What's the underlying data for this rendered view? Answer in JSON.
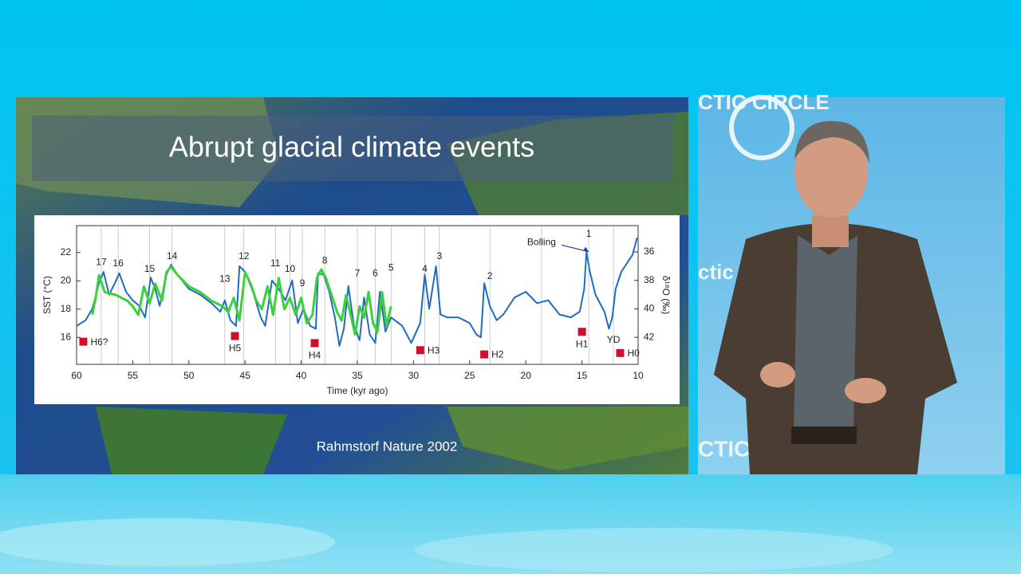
{
  "slide": {
    "title": "Abrupt glacial climate events",
    "caption": "Rahmstorf Nature 2002"
  },
  "backdrop_text": [
    "CTIC CIRCLE",
    "ctic",
    "CTIC"
  ],
  "chart_data": {
    "type": "line",
    "x_label": "Time (kyr ago)",
    "y_label": "SST (°C)",
    "y2_label": "δ¹⁸O (‰)",
    "xlim": [
      60,
      10
    ],
    "xticks": [
      60,
      55,
      50,
      45,
      40,
      35,
      30,
      25,
      20,
      15,
      10
    ],
    "ylim": [
      14.1,
      23.9
    ],
    "yticks": [
      16,
      18,
      20,
      22
    ],
    "y2lim": [
      43.9,
      34.15
    ],
    "y2ticks": [
      36,
      38,
      40,
      42
    ],
    "series": [
      {
        "name": "SST",
        "color": "#3dd03d",
        "axis": "y",
        "x": [
          58.6,
          58.3,
          58.0,
          57.5,
          56.5,
          55.5,
          55.0,
          54.5,
          54.0,
          53.5,
          53.0,
          52.4,
          52.0,
          51.6,
          51.0,
          50.0,
          49.0,
          48.0,
          47.0,
          46.5,
          46.0,
          45.5,
          45.0,
          44.5,
          44.0,
          43.5,
          43.0,
          42.5,
          42.0,
          41.5,
          41.0,
          40.5,
          40.0,
          39.5,
          39.0,
          38.6,
          38.2,
          37.8,
          37.3,
          36.8,
          36.4,
          36.0,
          35.6,
          35.2,
          34.8,
          34.4,
          34.0,
          33.6,
          33.2,
          32.8,
          32.4,
          32.0
        ],
        "values": [
          17.6,
          18.8,
          20.4,
          19.2,
          19.0,
          18.6,
          18.2,
          17.6,
          19.6,
          18.4,
          19.8,
          18.6,
          20.6,
          21.0,
          20.4,
          19.6,
          19.2,
          18.6,
          18.2,
          17.8,
          18.8,
          17.2,
          20.6,
          19.8,
          18.6,
          18.0,
          19.6,
          17.6,
          20.2,
          18.0,
          18.8,
          17.6,
          18.8,
          17.0,
          17.6,
          20.2,
          20.8,
          20.2,
          19.0,
          17.8,
          17.2,
          19.0,
          17.6,
          16.2,
          18.2,
          17.4,
          19.2,
          17.0,
          16.4,
          19.2,
          16.8,
          18.2
        ]
      },
      {
        "name": "δ18O",
        "color": "#1f6cc0",
        "axis": "y2",
        "x": [
          60,
          59.2,
          58.6,
          58.0,
          57.6,
          57.1,
          56.6,
          56.2,
          55.6,
          55.0,
          54.4,
          53.9,
          53.4,
          53.0,
          52.6,
          52.0,
          51.6,
          51.0,
          50.0,
          49.0,
          48.0,
          47.2,
          46.8,
          46.3,
          45.8,
          45.5,
          45.0,
          44.3,
          43.6,
          43.2,
          42.6,
          42.0,
          41.4,
          40.8,
          40.3,
          39.8,
          39.2,
          38.7,
          38.5,
          38.0,
          37.5,
          37.0,
          36.6,
          36.2,
          35.8,
          35.3,
          34.8,
          34.4,
          33.9,
          33.4,
          33.0,
          32.5,
          32.0,
          31.0,
          30.2,
          29.4,
          29.0,
          28.6,
          28.0,
          27.6,
          27.0,
          26.0,
          25.0,
          24.4,
          24.0,
          23.7,
          23.2,
          22.6,
          22.0,
          21.0,
          20.0,
          19.0,
          18.0,
          17.0,
          16.0,
          15.2,
          14.8,
          14.6,
          14.3,
          13.8,
          13.0,
          12.6,
          12.3,
          12.0,
          11.5,
          11.0,
          10.5,
          10.1
        ],
        "values": [
          41.2,
          40.8,
          40.0,
          38.2,
          37.4,
          39.0,
          38.2,
          37.5,
          38.8,
          39.4,
          39.8,
          40.6,
          37.8,
          38.6,
          39.8,
          37.6,
          36.9,
          37.6,
          38.6,
          39.0,
          39.6,
          40.2,
          39.4,
          40.8,
          41.2,
          37.0,
          37.4,
          38.8,
          40.6,
          41.2,
          38.0,
          38.6,
          39.4,
          38.0,
          41.0,
          40.0,
          41.2,
          41.4,
          37.5,
          37.6,
          38.8,
          40.6,
          42.6,
          41.4,
          38.4,
          41.2,
          42.2,
          39.2,
          41.8,
          42.4,
          38.8,
          41.6,
          40.6,
          41.2,
          42.4,
          41.0,
          37.6,
          40.0,
          37.0,
          40.4,
          40.6,
          40.6,
          41.0,
          41.8,
          42.0,
          38.2,
          39.8,
          40.8,
          40.4,
          39.2,
          38.8,
          39.6,
          39.4,
          40.4,
          40.6,
          40.2,
          38.6,
          36.0,
          37.4,
          39.0,
          40.2,
          41.4,
          40.6,
          38.6,
          37.4,
          36.8,
          36.2,
          35.0
        ]
      }
    ],
    "annotations": [
      {
        "text": "17",
        "x": 57.8,
        "y": 21.3
      },
      {
        "text": "16",
        "x": 56.3,
        "y": 21.2
      },
      {
        "text": "15",
        "x": 53.5,
        "y": 20.8
      },
      {
        "text": "14",
        "x": 51.5,
        "y": 21.7
      },
      {
        "text": "13",
        "x": 46.8,
        "y": 20.1
      },
      {
        "text": "12",
        "x": 45.1,
        "y": 21.7
      },
      {
        "text": "11",
        "x": 42.3,
        "y": 21.2
      },
      {
        "text": "10",
        "x": 41.0,
        "y": 20.8
      },
      {
        "text": "9",
        "x": 39.9,
        "y": 19.8
      },
      {
        "text": "8",
        "x": 37.9,
        "y": 21.4
      },
      {
        "text": "7",
        "x": 35.0,
        "y": 20.5
      },
      {
        "text": "6",
        "x": 33.4,
        "y": 20.5
      },
      {
        "text": "5",
        "x": 32.0,
        "y": 20.9
      },
      {
        "text": "4",
        "x": 29.0,
        "y": 20.8
      },
      {
        "text": "3",
        "x": 27.7,
        "y": 21.7
      },
      {
        "text": "2",
        "x": 23.2,
        "y": 20.3
      },
      {
        "text": "1",
        "x": 14.4,
        "y": 23.3
      },
      {
        "text": "Bolling",
        "x": 18.6,
        "y": 22.7
      },
      {
        "text": "YD",
        "x": 12.2,
        "y": 15.8
      }
    ],
    "events": [
      {
        "label": "H6?",
        "x": 59.4,
        "y": 15.7,
        "label_side": "right"
      },
      {
        "label": "H5",
        "x": 45.9,
        "y": 16.1,
        "label_side": "below"
      },
      {
        "label": "H4",
        "x": 38.8,
        "y": 15.6,
        "label_side": "below"
      },
      {
        "label": "H3",
        "x": 29.4,
        "y": 15.1,
        "label_side": "right"
      },
      {
        "label": "H2",
        "x": 23.7,
        "y": 14.8,
        "label_side": "right"
      },
      {
        "label": "H1",
        "x": 15.0,
        "y": 16.4,
        "label_side": "below"
      },
      {
        "label": "H0",
        "x": 11.6,
        "y": 14.9,
        "label_side": "right"
      }
    ],
    "event_color": "#d0102a"
  }
}
